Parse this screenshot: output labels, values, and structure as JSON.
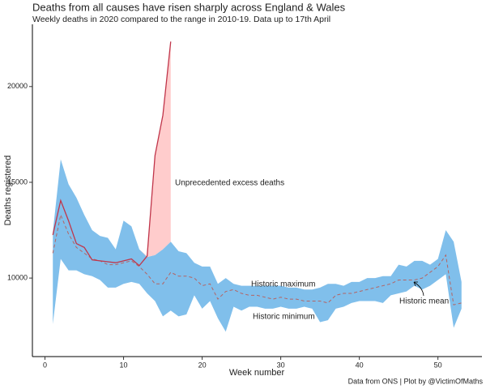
{
  "chart_data": {
    "type": "line",
    "title": "Deaths from all causes have risen sharply across England & Wales",
    "subtitle": "Weekly deaths in 2020 compared to the range in 2010-19. Data up to 17th April",
    "caption": "Data from ONS | Plot by @VictimOfMaths",
    "xlabel": "Week number",
    "ylabel": "Deaths registered",
    "annotations": [
      "Unprecedented excess deaths",
      "Historic maximum",
      "Historic minimum",
      "Historic mean"
    ],
    "x": [
      1,
      2,
      3,
      4,
      5,
      6,
      7,
      8,
      9,
      10,
      11,
      12,
      13,
      14,
      15,
      16,
      17,
      18,
      19,
      20,
      21,
      22,
      23,
      24,
      25,
      26,
      27,
      28,
      29,
      30,
      31,
      32,
      33,
      34,
      35,
      36,
      37,
      38,
      39,
      40,
      41,
      42,
      43,
      44,
      45,
      46,
      47,
      48,
      49,
      50,
      51,
      52,
      53
    ],
    "series": [
      {
        "name": "Historic maximum",
        "color": "#80bfeb",
        "values": [
          12400,
          16200,
          14900,
          14200,
          13300,
          12500,
          12200,
          12100,
          11500,
          13000,
          12700,
          11500,
          11100,
          11200,
          11500,
          11900,
          11400,
          11300,
          10800,
          10600,
          10600,
          9700,
          10000,
          9700,
          9600,
          9600,
          9600,
          9600,
          9600,
          9600,
          9500,
          9500,
          9400,
          9400,
          9500,
          9700,
          9700,
          9600,
          9800,
          9800,
          10000,
          10000,
          10100,
          10100,
          10700,
          10600,
          10900,
          10900,
          10700,
          11000,
          12500,
          11900,
          9800
        ]
      },
      {
        "name": "Historic minimum",
        "color": "#80bfeb",
        "values": [
          7600,
          11000,
          10400,
          10400,
          10200,
          10100,
          9900,
          9500,
          9500,
          9700,
          9800,
          9700,
          9200,
          8800,
          8000,
          8300,
          8000,
          8100,
          9100,
          8400,
          8800,
          7900,
          7200,
          8500,
          8300,
          8500,
          8500,
          8400,
          8400,
          8500,
          8400,
          8400,
          8500,
          8400,
          7700,
          7800,
          8400,
          8500,
          8700,
          8800,
          8800,
          8800,
          8700,
          9100,
          9200,
          9300,
          9600,
          9400,
          9600,
          9900,
          10200,
          7400,
          8400
        ]
      },
      {
        "name": "Historic mean",
        "color": "#b46464",
        "values": [
          11300,
          13300,
          12300,
          11600,
          11300,
          11000,
          10900,
          10700,
          10700,
          10800,
          10900,
          10600,
          10200,
          9700,
          9700,
          10300,
          10100,
          10100,
          10000,
          9600,
          9700,
          8900,
          9300,
          9400,
          9200,
          9100,
          9100,
          9000,
          8900,
          9000,
          8900,
          8900,
          8800,
          8800,
          8800,
          8700,
          9100,
          9200,
          9200,
          9300,
          9400,
          9500,
          9600,
          9700,
          9900,
          9900,
          9900,
          10000,
          10300,
          10600,
          11200,
          8600,
          8700
        ]
      },
      {
        "name": "2020",
        "color": "#c0354a",
        "values": [
          12250,
          14050,
          12990,
          11800,
          11600,
          10950,
          10900,
          10850,
          10800,
          10900,
          11000,
          10650,
          11150,
          16400,
          18500,
          22350,
          null,
          null,
          null,
          null,
          null,
          null,
          null,
          null,
          null,
          null,
          null,
          null,
          null,
          null,
          null,
          null,
          null,
          null,
          null,
          null,
          null,
          null,
          null,
          null,
          null,
          null,
          null,
          null,
          null,
          null,
          null,
          null,
          null,
          null,
          null,
          null,
          null
        ]
      }
    ],
    "excess_color": "#ffcccc",
    "annotation_color": "#d00000",
    "xlim": [
      -1.6,
      55.6
    ],
    "ylim": [
      5900,
      23250
    ],
    "xticks": [
      0,
      10,
      20,
      30,
      40,
      50
    ],
    "yticks": [
      10000,
      15000,
      20000
    ],
    "grid": false
  }
}
